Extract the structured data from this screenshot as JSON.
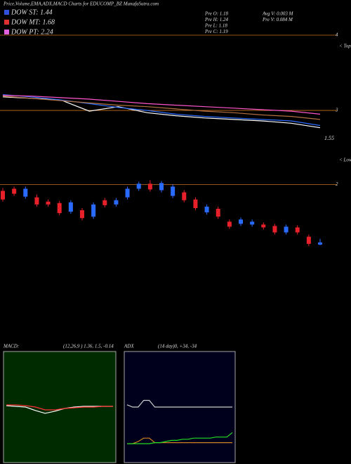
{
  "header": {
    "title": "Price,Volume,EMA,ADX,MACD Charts for EDUCOMP_BZ MunafaSutra.com",
    "dow": [
      {
        "label": "DOW ST: 1.44",
        "color": "#3050e0"
      },
      {
        "label": "DOW MT: 1.68",
        "color": "#e03030"
      },
      {
        "label": "DOW PT: 2.24",
        "color": "#e060e0"
      }
    ],
    "pre": [
      "Pre  O: 1.18",
      "Pre  H: 1.24",
      "Pre  L: 1.18",
      "Pre  C: 1.19"
    ],
    "vol": [
      "Avg V: 0.003 M",
      "Pre  V: 0.084  M"
    ],
    "tops": "< Tops",
    "lows": "< Lows"
  },
  "chart_data": [
    {
      "type": "line",
      "ylim": [
        2.3,
        4.0
      ],
      "yticks": [
        4,
        3
      ],
      "annotation": "1.55",
      "gridcolor": "#c87020",
      "series": [
        {
          "color": "#ffffff",
          "values": [
            3.18,
            3.16,
            3.14,
            2.99,
            3.05,
            2.97,
            2.93,
            2.9,
            2.88,
            2.86,
            2.83,
            2.77
          ]
        },
        {
          "color": "#2a6bff",
          "values": [
            3.21,
            3.18,
            3.14,
            3.09,
            3.04,
            3.0,
            2.95,
            2.92,
            2.9,
            2.88,
            2.86,
            2.8
          ]
        },
        {
          "color": "#ff55cc",
          "values": [
            3.2,
            3.19,
            3.17,
            3.15,
            3.12,
            3.09,
            3.07,
            3.05,
            3.03,
            3.01,
            2.99,
            2.95
          ]
        },
        {
          "color": "#b07040",
          "values": [
            3.19,
            3.16,
            3.13,
            3.1,
            3.07,
            3.05,
            3.02,
            2.99,
            2.97,
            2.94,
            2.92,
            2.88
          ]
        }
      ]
    },
    {
      "type": "candlestick",
      "ylim": [
        0,
        2.2
      ],
      "yticks": [
        2
      ],
      "up_color": "#2a6bff",
      "down_color": "#e8202a",
      "gridcolor": "#c87020",
      "open": [
        1.91,
        1.94,
        1.83,
        1.82,
        1.76,
        1.74,
        1.62,
        1.64,
        1.55,
        1.78,
        1.72,
        1.82,
        1.94,
        2.01,
        1.92,
        1.84,
        1.89,
        1.79,
        1.61,
        1.66,
        1.48,
        1.45,
        1.44,
        1.44,
        1.42,
        1.33,
        1.4,
        1.27,
        1.16
      ],
      "close": [
        1.79,
        1.87,
        1.94,
        1.72,
        1.72,
        1.6,
        1.75,
        1.53,
        1.72,
        1.71,
        1.78,
        1.94,
        2.01,
        1.93,
        2.02,
        1.97,
        1.78,
        1.67,
        1.69,
        1.55,
        1.41,
        1.51,
        1.48,
        1.4,
        1.33,
        1.41,
        1.33,
        1.17,
        1.19
      ],
      "high": [
        1.95,
        1.97,
        1.97,
        1.86,
        1.79,
        1.77,
        1.78,
        1.67,
        1.75,
        1.81,
        1.81,
        1.97,
        2.04,
        2.06,
        2.05,
        2.0,
        1.92,
        1.82,
        1.72,
        1.69,
        1.51,
        1.54,
        1.51,
        1.47,
        1.45,
        1.44,
        1.43,
        1.3,
        1.24
      ],
      "low": [
        1.76,
        1.84,
        1.8,
        1.69,
        1.69,
        1.57,
        1.59,
        1.5,
        1.52,
        1.68,
        1.69,
        1.79,
        1.91,
        1.9,
        1.89,
        1.81,
        1.75,
        1.64,
        1.58,
        1.52,
        1.38,
        1.42,
        1.41,
        1.37,
        1.3,
        1.3,
        1.3,
        1.14,
        1.15
      ]
    },
    {
      "type": "line",
      "title": "MACD:",
      "subtitle": "(12,26,9 ) 1.36, 1.5, -0.14",
      "ylim": [
        -8,
        8
      ],
      "background": "#002a00",
      "series": [
        {
          "color": "#ffffff",
          "values": [
            0.2,
            0.1,
            0.0,
            -0.5,
            -0.9,
            -0.6,
            -0.2,
            0.0,
            0.1,
            0.1,
            0.1,
            0.1
          ]
        },
        {
          "color": "#ff3030",
          "values": [
            0.3,
            0.3,
            0.2,
            0.0,
            -0.4,
            -0.4,
            -0.2,
            -0.1,
            0.0,
            0.0,
            0.1,
            0.1
          ]
        }
      ]
    },
    {
      "type": "line",
      "title": "ADX",
      "subtitle": "(14 day)0, +34, -34",
      "ylim": [
        0,
        100
      ],
      "background": "#00001c",
      "series": [
        {
          "color": "#cccccc",
          "values": [
            52,
            50,
            50,
            56,
            56,
            50,
            50,
            50,
            50,
            50,
            50,
            50,
            50,
            50,
            50,
            50,
            50,
            50,
            50,
            50
          ]
        },
        {
          "color": "#d08020",
          "values": [
            17,
            17,
            19,
            22,
            22,
            18,
            18,
            18,
            18,
            18,
            18,
            18,
            18,
            18,
            18,
            18,
            18,
            18,
            18,
            18
          ]
        },
        {
          "color": "#22dd22",
          "values": [
            17,
            17,
            17,
            17,
            17,
            18,
            18,
            19,
            20,
            20,
            21,
            21,
            22,
            22,
            22,
            22,
            23,
            23,
            23,
            27
          ]
        }
      ]
    }
  ]
}
